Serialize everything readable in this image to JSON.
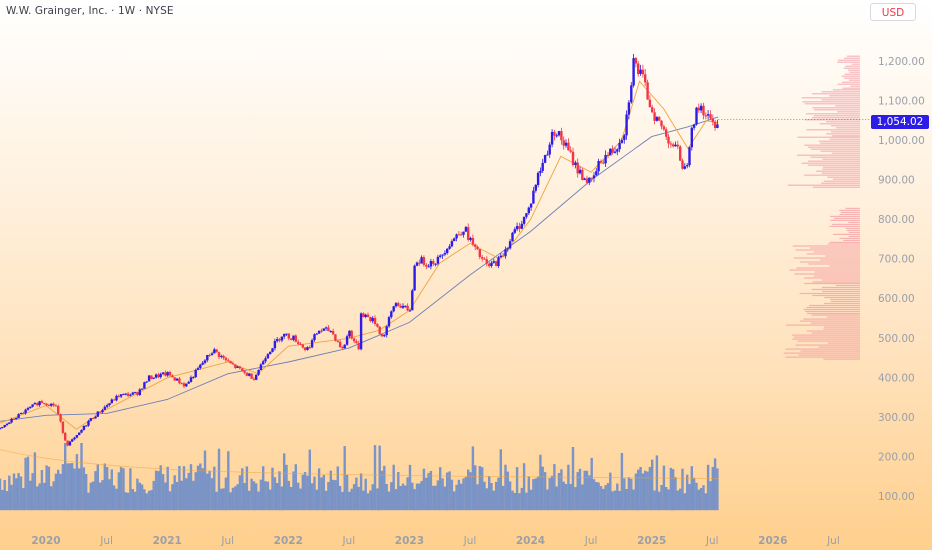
{
  "header": {
    "title": "W.W. Grainger, Inc. · 1W · NYSE",
    "currency": "USD",
    "last_price": "1,054.02"
  },
  "colors": {
    "up": "#2d1ce6",
    "down": "#f23645",
    "ma_fast": "#f2a33a",
    "ma_slow": "#6f7fb8",
    "volume": "#4f7ed4",
    "volume_profile": "#f28a98",
    "axis_text": "#9aa0aa"
  },
  "chart_data": {
    "type": "candlestick",
    "symbol": "W.W. Grainger, Inc.",
    "interval": "1W",
    "exchange": "NYSE",
    "y_axis": {
      "ticks": [
        100,
        200,
        300,
        400,
        500,
        600,
        700,
        800,
        900,
        1000,
        1100,
        1200
      ],
      "tick_labels": [
        "100.00",
        "200.00",
        "300.00",
        "400.00",
        "500.00",
        "600.00",
        "700.00",
        "800.00",
        "900.00",
        "1,000.00",
        "1,100.00",
        "1,200.00"
      ],
      "range": [
        20,
        1300
      ]
    },
    "x_axis": {
      "tick_labels": [
        "2020",
        "Jul",
        "2021",
        "Jul",
        "2022",
        "Jul",
        "2023",
        "Jul",
        "2024",
        "Jul",
        "2025",
        "Jul",
        "2026",
        "Jul"
      ],
      "tick_dates": [
        2020.0,
        2020.5,
        2021.0,
        2021.5,
        2022.0,
        2022.5,
        2023.0,
        2023.5,
        2024.0,
        2024.5,
        2025.0,
        2025.5,
        2026.0,
        2026.5
      ],
      "range": [
        2019.62,
        2026.72
      ]
    },
    "price_path": [
      [
        2019.62,
        270
      ],
      [
        2019.75,
        300
      ],
      [
        2019.95,
        340
      ],
      [
        2020.08,
        330
      ],
      [
        2020.17,
        230
      ],
      [
        2020.25,
        250
      ],
      [
        2020.35,
        290
      ],
      [
        2020.5,
        330
      ],
      [
        2020.6,
        355
      ],
      [
        2020.75,
        360
      ],
      [
        2020.85,
        400
      ],
      [
        2021.0,
        410
      ],
      [
        2021.15,
        380
      ],
      [
        2021.3,
        440
      ],
      [
        2021.38,
        470
      ],
      [
        2021.5,
        440
      ],
      [
        2021.65,
        410
      ],
      [
        2021.72,
        400
      ],
      [
        2021.82,
        460
      ],
      [
        2021.95,
        510
      ],
      [
        2022.05,
        500
      ],
      [
        2022.15,
        470
      ],
      [
        2022.25,
        520
      ],
      [
        2022.35,
        520
      ],
      [
        2022.45,
        470
      ],
      [
        2022.5,
        520
      ],
      [
        2022.58,
        470
      ],
      [
        2022.6,
        565
      ],
      [
        2022.72,
        540
      ],
      [
        2022.78,
        500
      ],
      [
        2022.88,
        590
      ],
      [
        2022.95,
        580
      ],
      [
        2023.0,
        560
      ],
      [
        2023.05,
        700
      ],
      [
        2023.15,
        690
      ],
      [
        2023.25,
        700
      ],
      [
        2023.3,
        730
      ],
      [
        2023.45,
        780
      ],
      [
        2023.55,
        720
      ],
      [
        2023.65,
        680
      ],
      [
        2023.75,
        700
      ],
      [
        2023.85,
        760
      ],
      [
        2023.98,
        820
      ],
      [
        2024.05,
        900
      ],
      [
        2024.2,
        1030
      ],
      [
        2024.3,
        980
      ],
      [
        2024.4,
        920
      ],
      [
        2024.5,
        890
      ],
      [
        2024.58,
        950
      ],
      [
        2024.7,
        980
      ],
      [
        2024.78,
        1030
      ],
      [
        2024.85,
        1200
      ],
      [
        2024.92,
        1160
      ],
      [
        2025.0,
        1080
      ],
      [
        2025.05,
        1050
      ],
      [
        2025.15,
        1000
      ],
      [
        2025.22,
        970
      ],
      [
        2025.28,
        920
      ],
      [
        2025.33,
        1040
      ],
      [
        2025.4,
        1090
      ],
      [
        2025.5,
        1040
      ],
      [
        2025.55,
        1054
      ]
    ],
    "ma_fast_path": [
      [
        2019.62,
        285
      ],
      [
        2020.0,
        330
      ],
      [
        2020.25,
        270
      ],
      [
        2020.5,
        320
      ],
      [
        2021.0,
        400
      ],
      [
        2021.5,
        440
      ],
      [
        2021.75,
        410
      ],
      [
        2022.0,
        480
      ],
      [
        2022.5,
        500
      ],
      [
        2022.75,
        520
      ],
      [
        2023.0,
        570
      ],
      [
        2023.25,
        690
      ],
      [
        2023.5,
        740
      ],
      [
        2023.75,
        700
      ],
      [
        2024.0,
        800
      ],
      [
        2024.25,
        960
      ],
      [
        2024.5,
        920
      ],
      [
        2024.75,
        1000
      ],
      [
        2024.9,
        1150
      ],
      [
        2025.1,
        1080
      ],
      [
        2025.3,
        980
      ],
      [
        2025.45,
        1050
      ],
      [
        2025.55,
        1045
      ]
    ],
    "ma_slow_path": [
      [
        2019.62,
        290
      ],
      [
        2020.0,
        305
      ],
      [
        2020.5,
        310
      ],
      [
        2021.0,
        345
      ],
      [
        2021.5,
        410
      ],
      [
        2022.0,
        440
      ],
      [
        2022.5,
        475
      ],
      [
        2023.0,
        540
      ],
      [
        2023.5,
        660
      ],
      [
        2024.0,
        770
      ],
      [
        2024.5,
        900
      ],
      [
        2025.0,
        1010
      ],
      [
        2025.3,
        1035
      ],
      [
        2025.55,
        1060
      ]
    ],
    "volume": {
      "baseline_price": 65,
      "max_price": 235,
      "mean_price": 155
    },
    "volume_profile": [
      {
        "from": 445,
        "to": 560,
        "length": 1.0
      },
      {
        "from": 560,
        "to": 640,
        "length": 0.85
      },
      {
        "from": 640,
        "to": 740,
        "length": 0.95
      },
      {
        "from": 740,
        "to": 830,
        "length": 0.4
      },
      {
        "from": 880,
        "to": 1010,
        "length": 0.95
      },
      {
        "from": 1010,
        "to": 1130,
        "length": 0.75
      },
      {
        "from": 1130,
        "to": 1215,
        "length": 0.3
      }
    ]
  }
}
